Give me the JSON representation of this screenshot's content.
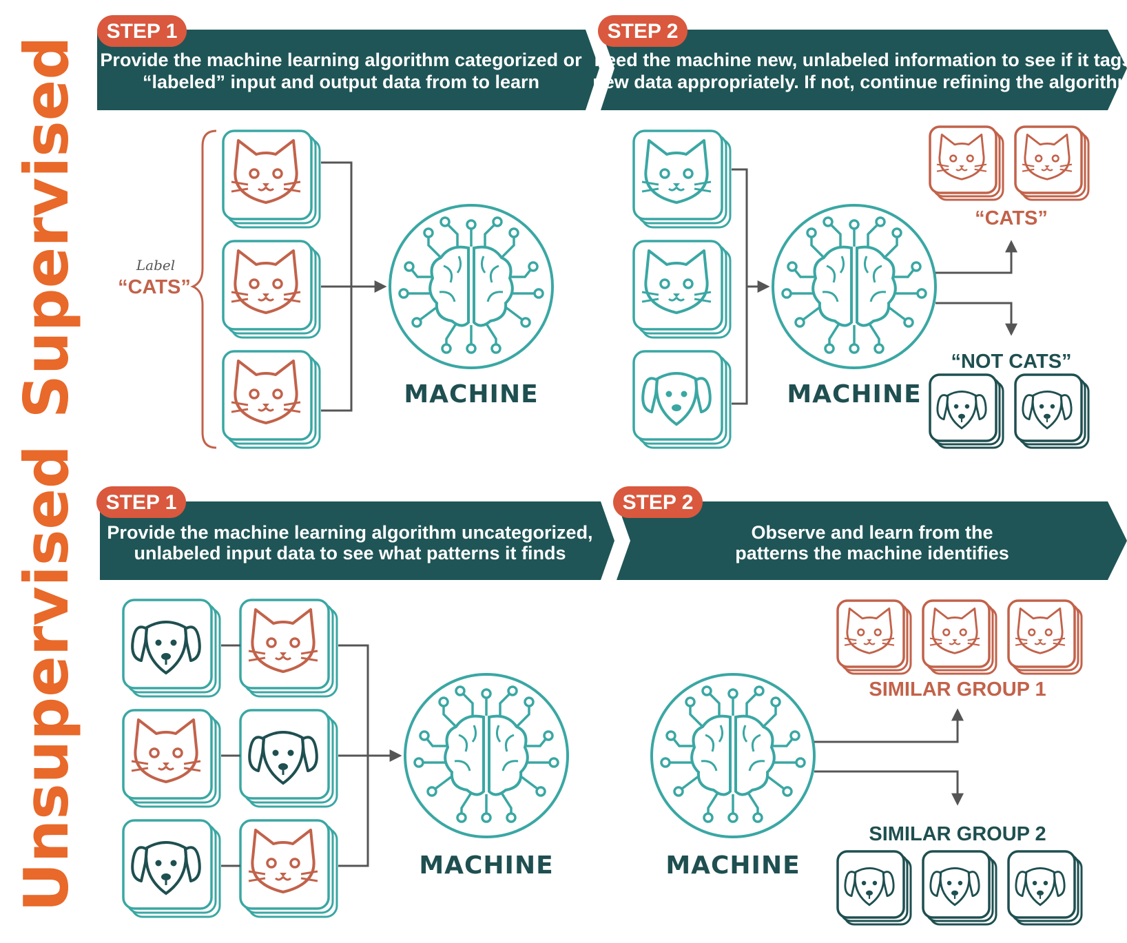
{
  "supervised": {
    "section_label": "Supervised",
    "step1": {
      "badge": "STEP 1",
      "text_line1": "Provide the machine learning algorithm categorized or",
      "text_line2": "“labeled” input and output data from to learn"
    },
    "step2": {
      "badge": "STEP 2",
      "text_line1": "Feed the machine new, unlabeled information to see if it tags",
      "text_line2": "new data appropriately. If not, continue refining the algorithm"
    },
    "label_small": "Label",
    "label_cats": "“CATS”",
    "machine1": "MACHINE",
    "machine2": "MACHINE",
    "output_cats": "“CATS”",
    "output_not_cats": "“NOT CATS”"
  },
  "unsupervised": {
    "section_label": "Unsupervised",
    "step1": {
      "badge": "STEP 1",
      "text_line1": "Provide the machine learning algorithm uncategorized,",
      "text_line2": "unlabeled input data to see what patterns it finds"
    },
    "step2": {
      "badge": "STEP 2",
      "text_line1": "Observe and learn from the",
      "text_line2": "patterns the machine identifies"
    },
    "machine1": "MACHINE",
    "machine2": "MACHINE",
    "group1": "SIMILAR GROUP 1",
    "group2": "SIMILAR GROUP 2"
  },
  "colors": {
    "banner": "#1f5556",
    "badge": "#d9583e",
    "teal": "#3aa7a3",
    "orange": "#c2624a",
    "dark": "#1f4f50",
    "section": "#e8692a"
  },
  "icons": [
    "cat-icon",
    "dog-icon",
    "brain-circuit-icon",
    "arrow-icon",
    "brace-icon"
  ]
}
